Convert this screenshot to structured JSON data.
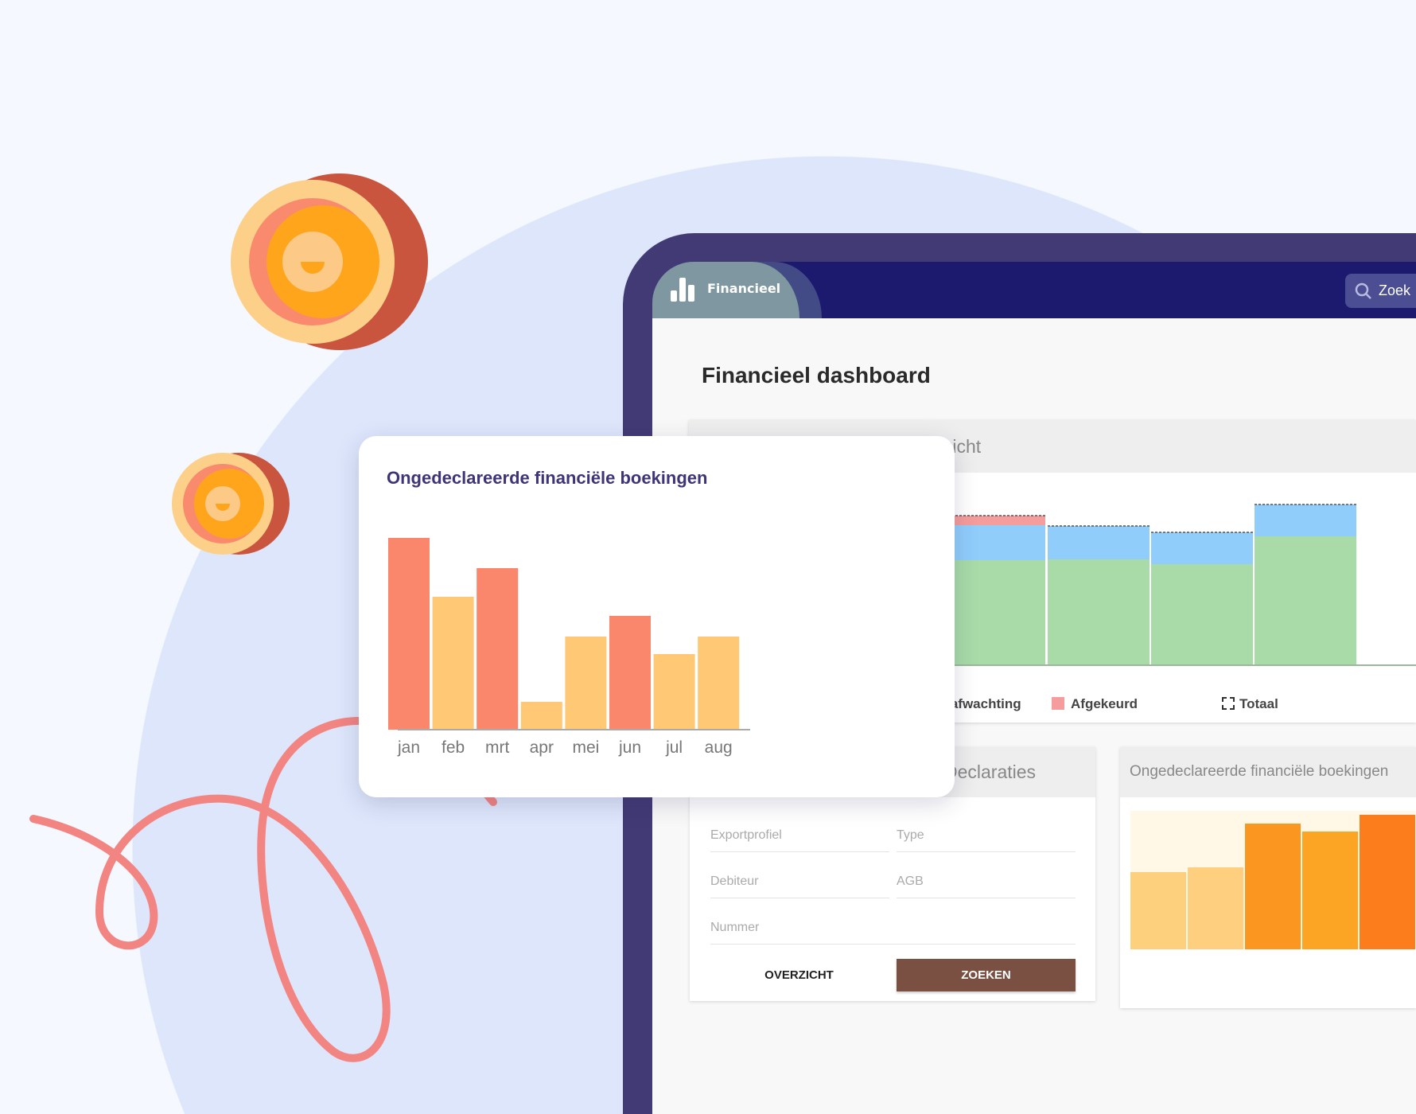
{
  "header": {
    "app_tab": "Financieel",
    "search_placeholder": "Zoek"
  },
  "page": {
    "title": "Financieel dashboard"
  },
  "overview_card": {
    "title": "Overzicht",
    "legend": [
      {
        "label": "In afwachting",
        "color": "#90cdfb"
      },
      {
        "label": "Afgekeurd",
        "color": "#f59c9c"
      },
      {
        "label": "Totaal",
        "style": "dashed"
      }
    ]
  },
  "overview_chart": {
    "type": "bar",
    "stacked": true,
    "series": [
      {
        "color": "#a8dba8",
        "values": [
          137,
          132,
          133,
          127,
          162
        ]
      },
      {
        "color": "#90cdfb",
        "values": [
          40,
          44,
          42,
          40,
          40
        ]
      },
      {
        "color": "#f59c9c",
        "values": [
          0,
          12,
          0,
          0,
          0
        ]
      }
    ]
  },
  "declaraties_card": {
    "title": "Declaraties",
    "fields": {
      "exportprofiel": "Exportprofiel",
      "type": "Type",
      "debiteur": "Debiteur",
      "agb": "AGB",
      "nummer": "Nummer"
    },
    "btn_overview": "OVERZICHT",
    "btn_search": "ZOEKEN"
  },
  "small_bookings_card": {
    "title": "Ongedeclareerde financiële boekingen",
    "bars": [
      {
        "value": 0.56,
        "color": "#fdd07e"
      },
      {
        "value": 0.59,
        "color": "#fdcf7e"
      },
      {
        "value": 0.91,
        "color": "#fb9621"
      },
      {
        "value": 0.85,
        "color": "#fca524"
      },
      {
        "value": 0.97,
        "color": "#fb7d1c"
      }
    ]
  },
  "chart_data": {
    "type": "bar",
    "title": "Ongedeclareerde financiële boekingen",
    "categories": [
      "jan",
      "feb",
      "mrt",
      "apr",
      "mei",
      "jun",
      "jul",
      "aug"
    ],
    "values": [
      241,
      167,
      203,
      35,
      117,
      143,
      95,
      117
    ],
    "colors": [
      "#fa876c",
      "#fec874",
      "#fa876c",
      "#fec874",
      "#fec874",
      "#fa876c",
      "#fec874",
      "#fec874"
    ],
    "xlabel": "",
    "ylabel": "",
    "grid": false
  }
}
